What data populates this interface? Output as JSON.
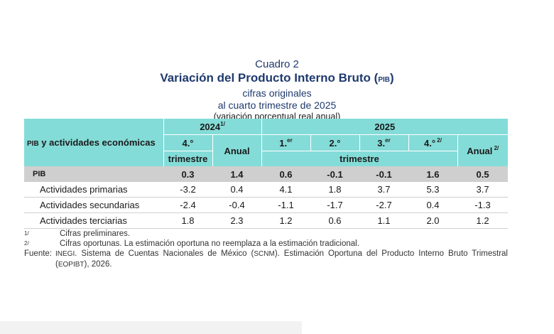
{
  "title": {
    "cuadro": "Cuadro 2",
    "main": "Variación del Producto Interno Bruto (",
    "main_abbr": "PIB",
    "main_close": ")",
    "line3": "cifras originales",
    "line4": "al cuarto trimestre de 2025",
    "line5": "(variación porcentual real anual)"
  },
  "header": {
    "rowlabel_abbr": "PIB",
    "rowlabel_rest": " y actividades económicas",
    "year1": "2024",
    "year1_sup": "1/",
    "year2": "2025",
    "q4_2024": "4.°",
    "trimestre": "trimestre",
    "anual": "Anual",
    "q1": "1.",
    "q1_sup": "er",
    "q2": "2.°",
    "q3": "3.",
    "q3_sup": "er",
    "q4": "4.°",
    "q4_sup": " 2/",
    "anual2": "Anual",
    "anual2_sup": " 2/"
  },
  "rows": [
    {
      "label": "PIB",
      "values": [
        "0.3",
        "1.4",
        "0.6",
        "-0.1",
        "-0.1",
        "1.6",
        "0.5"
      ]
    },
    {
      "label": "Actividades primarias",
      "values": [
        "-3.2",
        "0.4",
        "4.1",
        "1.8",
        "3.7",
        "5.3",
        "3.7"
      ]
    },
    {
      "label": "Actividades secundarias",
      "values": [
        "-2.4",
        "-0.4",
        "-1.1",
        "-1.7",
        "-2.7",
        "0.4",
        "-1.3"
      ]
    },
    {
      "label": "Actividades terciarias",
      "values": [
        "1.8",
        "2.3",
        "1.2",
        "0.6",
        "1.1",
        "2.0",
        "1.2"
      ]
    }
  ],
  "notes": {
    "n1_mark": "1/",
    "n1": "Cifras preliminares.",
    "n2_mark": "2/",
    "n2": "Cifras oportunas. La estimación oportuna no reemplaza a la estimación tradicional.",
    "fuente_label": "Fuente:",
    "fuente_inegi": "INEGI",
    "fuente_a": ". Sistema de Cuentas Nacionales de México (",
    "fuente_scnm": "SCNM",
    "fuente_b": "). Estimación Oportuna del Producto Interno Bruto Trimestral (",
    "fuente_eopibt": "EOPIBT",
    "fuente_c": "), 2026."
  },
  "colors": {
    "teal": "#84dcd8",
    "gray": "#cfcfcf",
    "title": "#1f3a6e"
  }
}
